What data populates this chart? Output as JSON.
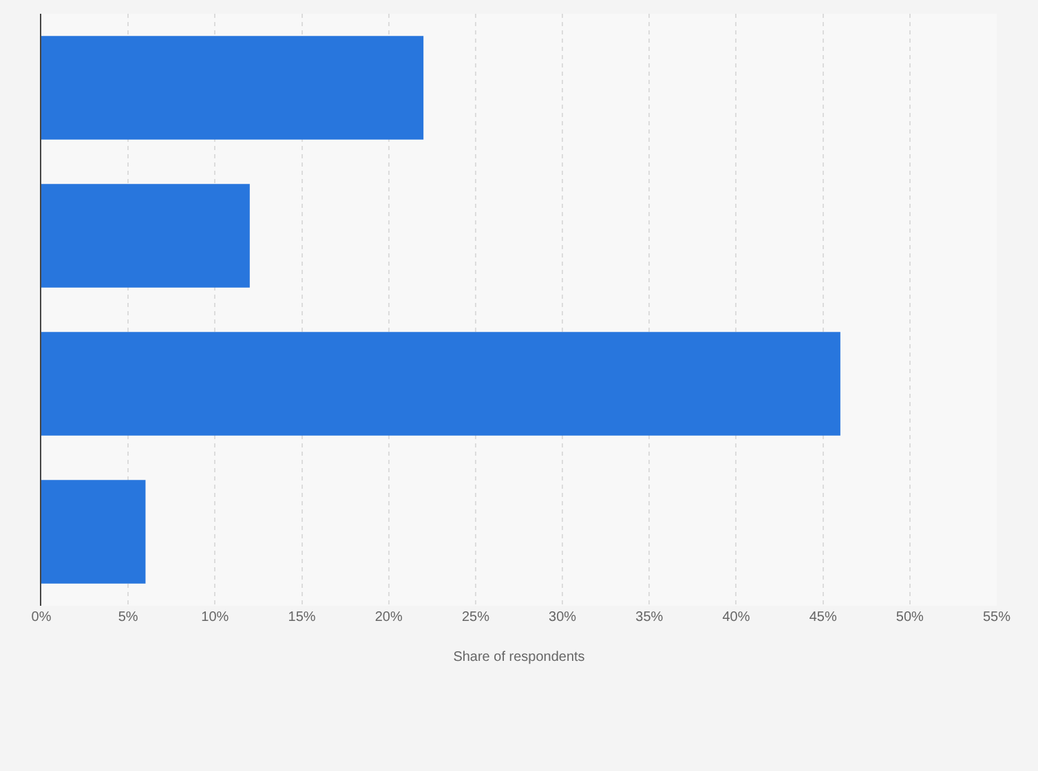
{
  "chart_data": {
    "type": "bar",
    "orientation": "horizontal",
    "categories": [
      null,
      null,
      null,
      null
    ],
    "values": [
      22,
      12,
      46,
      6
    ],
    "color": "#2876dd",
    "xlabel": "Share of respondents",
    "xlim": [
      0,
      55
    ],
    "xticks": [
      {
        "value": 0,
        "label": "0%"
      },
      {
        "value": 5,
        "label": "5%"
      },
      {
        "value": 10,
        "label": "10%"
      },
      {
        "value": 15,
        "label": "15%"
      },
      {
        "value": 20,
        "label": "20%"
      },
      {
        "value": 25,
        "label": "25%"
      },
      {
        "value": 30,
        "label": "30%"
      },
      {
        "value": 35,
        "label": "35%"
      },
      {
        "value": 40,
        "label": "40%"
      },
      {
        "value": 45,
        "label": "45%"
      },
      {
        "value": 50,
        "label": "50%"
      },
      {
        "value": 55,
        "label": "55%"
      }
    ],
    "grid": "x",
    "tick_labels": "x"
  }
}
